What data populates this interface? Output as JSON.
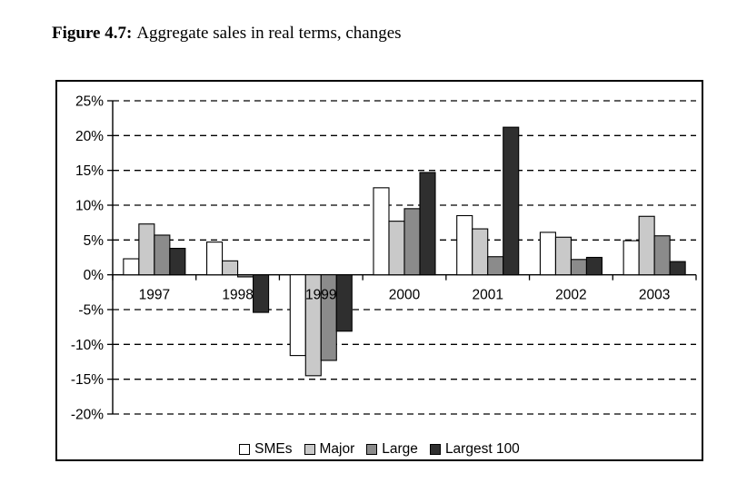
{
  "figure": {
    "label": "Figure 4.7:",
    "caption": "Aggregate sales in real terms, changes"
  },
  "chart_data": {
    "type": "bar",
    "title": "Figure 4.7: Aggregate sales in real terms, changes",
    "xlabel": "",
    "ylabel": "",
    "categories": [
      "1997",
      "1998",
      "1999",
      "2000",
      "2001",
      "2002",
      "2003"
    ],
    "series": [
      {
        "name": "SMEs",
        "color": "#ffffff",
        "values": [
          2.3,
          4.7,
          -11.6,
          12.5,
          8.5,
          6.1,
          4.9
        ]
      },
      {
        "name": "Major",
        "color": "#c9c9c9",
        "values": [
          7.3,
          2.0,
          -14.5,
          7.7,
          6.6,
          5.4,
          8.4
        ]
      },
      {
        "name": "Large",
        "color": "#8b8b8b",
        "values": [
          5.7,
          -0.3,
          -12.3,
          9.5,
          2.6,
          2.2,
          5.6
        ]
      },
      {
        "name": "Largest 100",
        "color": "#2f2f2f",
        "values": [
          3.8,
          -5.4,
          -8.1,
          14.7,
          21.2,
          2.5,
          1.9
        ]
      }
    ],
    "ylim": [
      -20,
      25
    ],
    "ytick_step": 5,
    "y_tick_labels": [
      "25%",
      "20%",
      "15%",
      "10%",
      "5%",
      "0%",
      "-5%",
      "-10%",
      "-15%",
      "-20%"
    ],
    "grid": "horizontal-dashed",
    "bar_border_color": "#000000",
    "legend_position": "bottom-center-inside"
  }
}
